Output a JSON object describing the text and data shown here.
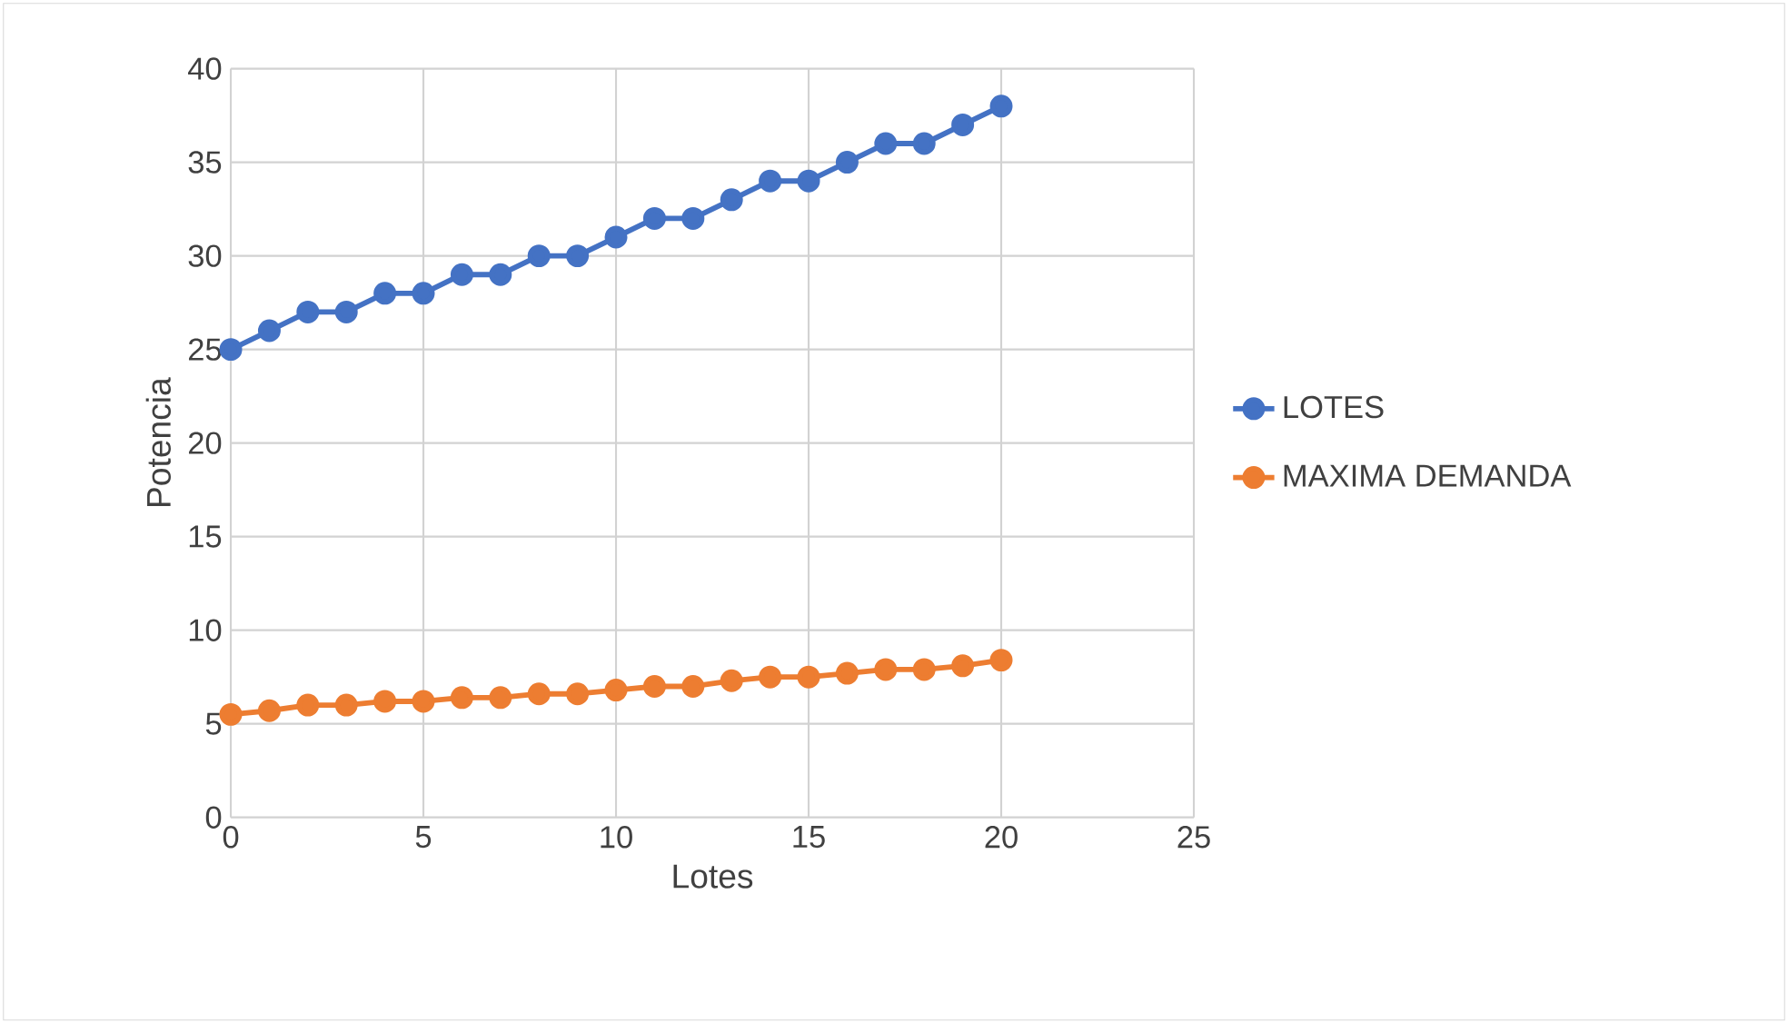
{
  "chart_data": {
    "type": "line",
    "xlabel": "Lotes",
    "ylabel": "Potencia",
    "x": [
      0,
      1,
      2,
      3,
      4,
      5,
      6,
      7,
      8,
      9,
      10,
      11,
      12,
      13,
      14,
      15,
      16,
      17,
      18,
      19,
      20
    ],
    "series": [
      {
        "name": "LOTES",
        "color": "#4472c4",
        "values": [
          25,
          26,
          27,
          27,
          28,
          28,
          29,
          29,
          30,
          30,
          31,
          32,
          32,
          33,
          34,
          34,
          35,
          36,
          36,
          37,
          38
        ]
      },
      {
        "name": "MAXIMA DEMANDA",
        "color": "#ed7d31",
        "values": [
          5.5,
          5.7,
          6.0,
          6.0,
          6.2,
          6.2,
          6.4,
          6.4,
          6.6,
          6.6,
          6.8,
          7.0,
          7.0,
          7.3,
          7.5,
          7.5,
          7.7,
          7.9,
          7.9,
          8.1,
          8.4
        ]
      }
    ],
    "xlim": [
      0,
      25
    ],
    "ylim": [
      0,
      40
    ],
    "xticks": [
      0,
      5,
      10,
      15,
      20,
      25
    ],
    "yticks": [
      0,
      5,
      10,
      15,
      20,
      25,
      30,
      35,
      40
    ],
    "grid": true,
    "legend": "right",
    "marker": "circle",
    "line_style": "solid"
  }
}
